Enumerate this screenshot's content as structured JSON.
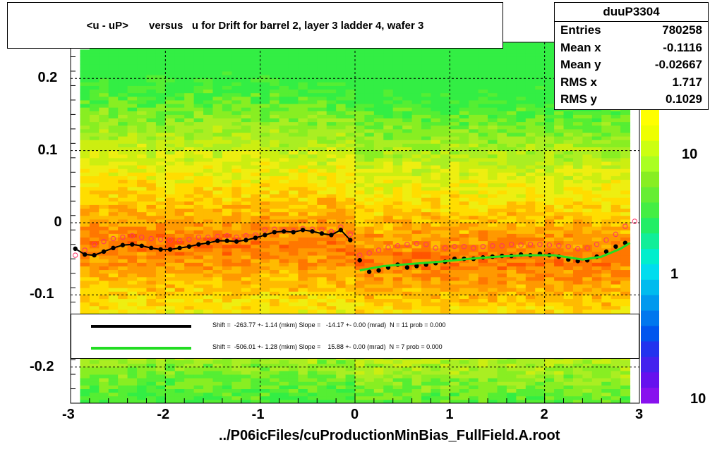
{
  "title": "<u - uP>       versus   u for Drift for barrel 2, layer 3 ladder 4, wafer 3",
  "stats": {
    "name": "duuP3304",
    "rows": [
      {
        "key": "Entries",
        "value": "780258"
      },
      {
        "key": "Mean x",
        "value": "-0.1116"
      },
      {
        "key": "Mean y",
        "value": "-0.02667"
      },
      {
        "key": "RMS x",
        "value": "1.717"
      },
      {
        "key": "RMS y",
        "value": "0.1029"
      }
    ]
  },
  "legend": [
    {
      "color": "#000000",
      "text": "Shift =  -263.77 +- 1.14 (mkm) Slope =   -14.17 +- 0.00 (mrad)  N = 11 prob = 0.000"
    },
    {
      "color": "#22dd22",
      "text": "Shift =  -506.01 +- 1.28 (mkm) Slope =    15.88 +- 0.00 (mrad)  N = 7 prob = 0.000"
    }
  ],
  "xlabel": "../P06icFiles/cuProductionMinBias_FullField.A.root",
  "colors": {
    "black_series": "#000000",
    "open_series": "#ff3366",
    "green_fit": "#22dd22"
  },
  "chart_data": {
    "type": "heatmap",
    "xlim": [
      -3,
      3
    ],
    "ylim": [
      -0.25,
      0.25
    ],
    "x_ticks": [
      "-3",
      "-2",
      "-1",
      "0",
      "1",
      "2",
      "3"
    ],
    "y_ticks": [
      "-0.2",
      "-0.1",
      "0",
      "0.1",
      "0.2"
    ],
    "z_ticks": [
      "1",
      "10",
      "10"
    ],
    "grid": true,
    "series": [
      {
        "marker": "filled-circle",
        "x": [
          -2.95,
          -2.85,
          -2.75,
          -2.65,
          -2.55,
          -2.45,
          -2.35,
          -2.25,
          -2.15,
          -2.05,
          -1.95,
          -1.85,
          -1.75,
          -1.65,
          -1.55,
          -1.45,
          -1.35,
          -1.25,
          -1.15,
          -1.05,
          -0.95,
          -0.85,
          -0.75,
          -0.65,
          -0.55,
          -0.45,
          -0.35,
          -0.25,
          -0.15,
          -0.05,
          0.05,
          0.15,
          0.25,
          0.35,
          0.45,
          0.55,
          0.65,
          0.75,
          0.85,
          0.95,
          1.05,
          1.15,
          1.25,
          1.35,
          1.45,
          1.55,
          1.65,
          1.75,
          1.85,
          1.95,
          2.05,
          2.15,
          2.25,
          2.35,
          2.45,
          2.55,
          2.65,
          2.75,
          2.85
        ],
        "y": [
          -0.036,
          -0.044,
          -0.045,
          -0.04,
          -0.035,
          -0.031,
          -0.03,
          -0.032,
          -0.035,
          -0.037,
          -0.037,
          -0.035,
          -0.033,
          -0.03,
          -0.028,
          -0.025,
          -0.025,
          -0.026,
          -0.024,
          -0.021,
          -0.017,
          -0.013,
          -0.012,
          -0.013,
          -0.01,
          -0.012,
          -0.015,
          -0.017,
          -0.01,
          -0.024,
          -0.052,
          -0.068,
          -0.066,
          -0.062,
          -0.058,
          -0.062,
          -0.06,
          -0.058,
          -0.056,
          -0.054,
          -0.05,
          -0.05,
          -0.05,
          -0.048,
          -0.047,
          -0.046,
          -0.046,
          -0.044,
          -0.045,
          -0.043,
          -0.045,
          -0.047,
          -0.051,
          -0.053,
          -0.052,
          -0.047,
          -0.04,
          -0.033,
          -0.028
        ]
      },
      {
        "marker": "open-circle",
        "x": [
          -2.95,
          -2.85,
          -2.75,
          -2.65,
          -2.55,
          -2.45,
          -2.35,
          -2.25,
          -2.15,
          -2.05,
          -1.95,
          -1.85,
          -1.75,
          -1.65,
          -1.55,
          -1.45,
          -1.35,
          -1.25,
          -1.15,
          -1.05,
          -0.95,
          -0.85,
          -0.75,
          -0.65,
          -0.55,
          -0.45,
          -0.35,
          -0.25,
          -0.15,
          -0.05,
          0.05,
          0.15,
          0.25,
          0.35,
          0.45,
          0.55,
          0.65,
          0.75,
          0.85,
          0.95,
          1.05,
          1.15,
          1.25,
          1.35,
          1.45,
          1.55,
          1.65,
          1.75,
          1.85,
          1.95,
          2.05,
          2.15,
          2.25,
          2.35,
          2.45,
          2.55,
          2.65,
          2.75,
          2.85,
          2.95
        ],
        "y": [
          -0.045,
          -0.038,
          -0.03,
          -0.026,
          -0.022,
          -0.02,
          -0.018,
          -0.02,
          -0.022,
          -0.023,
          -0.024,
          -0.025,
          -0.023,
          -0.02,
          -0.02,
          -0.019,
          -0.018,
          -0.02,
          -0.018,
          -0.017,
          -0.01,
          -0.009,
          -0.01,
          -0.011,
          -0.008,
          -0.009,
          -0.01,
          -0.012,
          -0.006,
          -0.016,
          -0.045,
          -0.042,
          -0.038,
          -0.034,
          -0.032,
          -0.03,
          -0.029,
          -0.03,
          -0.035,
          -0.035,
          -0.033,
          -0.033,
          -0.035,
          -0.033,
          -0.032,
          -0.032,
          -0.03,
          -0.031,
          -0.03,
          -0.03,
          -0.031,
          -0.032,
          -0.033,
          -0.036,
          -0.035,
          -0.03,
          -0.024,
          -0.016,
          -0.005,
          0.002
        ]
      },
      {
        "marker": "fit-line",
        "x": [
          0.05,
          0.3,
          0.6,
          0.9,
          1.2,
          1.5,
          1.8,
          2.1,
          2.4,
          2.6,
          2.8,
          2.9
        ],
        "y": [
          -0.066,
          -0.06,
          -0.057,
          -0.054,
          -0.05,
          -0.047,
          -0.045,
          -0.045,
          -0.051,
          -0.047,
          -0.036,
          -0.028
        ]
      }
    ]
  }
}
